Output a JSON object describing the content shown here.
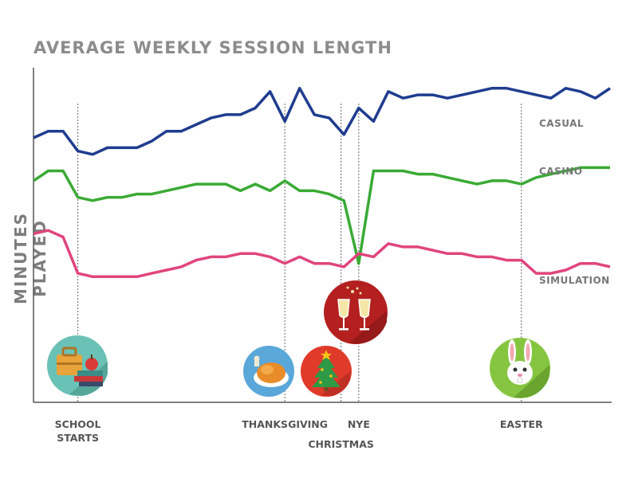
{
  "chart_data": {
    "type": "line",
    "title": "AVERAGE WEEKLY SESSION LENGTH",
    "xlabel": "",
    "ylabel": "MINUTES PLAYED",
    "ylim": [
      0,
      100
    ],
    "n_points": 40,
    "series": [
      {
        "name": "CASUAL",
        "color": "#1f3c8f",
        "values": [
          80,
          82,
          82,
          76,
          75,
          77,
          77,
          77,
          79,
          82,
          82,
          84,
          86,
          87,
          87,
          89,
          94,
          85,
          95,
          87,
          86,
          81,
          89,
          85,
          94,
          92,
          93,
          93,
          92,
          93,
          94,
          95,
          95,
          94,
          93,
          92,
          95,
          94,
          92,
          95
        ]
      },
      {
        "name": "CASINO",
        "color": "#3aaa35",
        "values": [
          67,
          70,
          70,
          62,
          61,
          62,
          62,
          63,
          63,
          64,
          65,
          66,
          66,
          66,
          64,
          66,
          64,
          67,
          64,
          64,
          63,
          61,
          42,
          70,
          70,
          70,
          69,
          69,
          68,
          67,
          66,
          67,
          67,
          66,
          68,
          69,
          70,
          71,
          71,
          71
        ]
      },
      {
        "name": "SIMULATION",
        "color": "#e0457b",
        "values": [
          51,
          52,
          50,
          39,
          38,
          38,
          38,
          38,
          39,
          40,
          41,
          43,
          44,
          44,
          45,
          45,
          44,
          42,
          44,
          42,
          42,
          41,
          45,
          44,
          48,
          47,
          47,
          46,
          45,
          45,
          44,
          44,
          43,
          43,
          39,
          39,
          40,
          42,
          42,
          41
        ]
      }
    ],
    "events": [
      {
        "label": "SCHOOL STARTS",
        "index": 3,
        "icon": "school-bag-icon"
      },
      {
        "label": "THANKSGIVING",
        "index": 17,
        "icon": "turkey-icon"
      },
      {
        "label": "CHRISTMAS",
        "index": 20.8,
        "icon": "christmas-tree-icon"
      },
      {
        "label": "NYE",
        "index": 22,
        "icon": "champagne-icon"
      },
      {
        "label": "EASTER",
        "index": 33,
        "icon": "bunny-icon"
      }
    ],
    "grid": false,
    "legend": "right-inline"
  }
}
